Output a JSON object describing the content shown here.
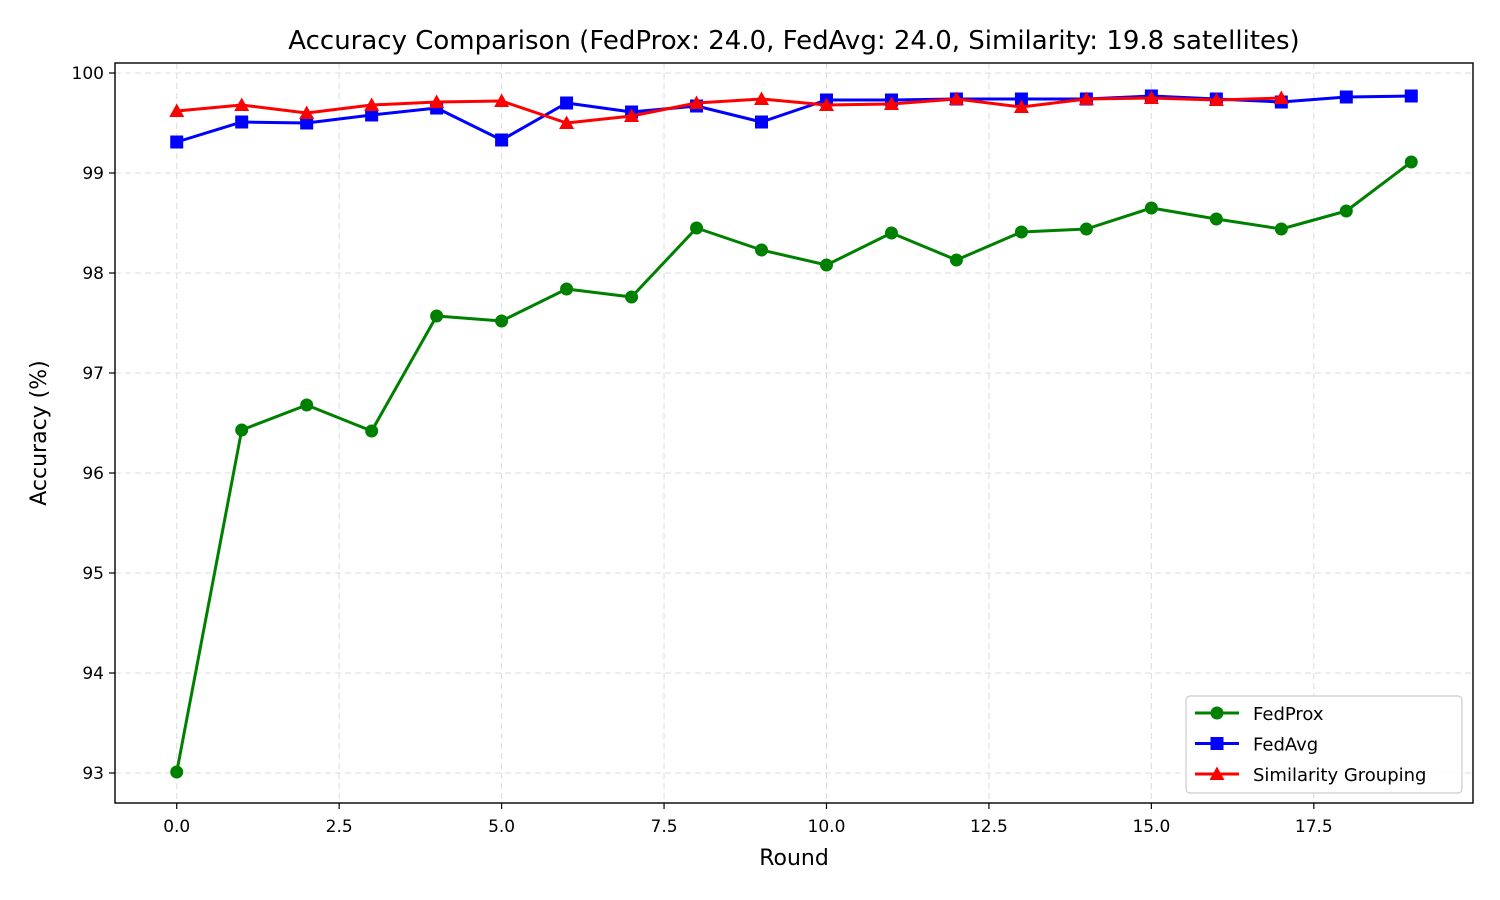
{
  "chart_data": {
    "type": "line",
    "title": "Accuracy Comparison (FedProx: 24.0, FedAvg: 24.0, Similarity: 19.8 satellites)",
    "xlabel": "Round",
    "ylabel": "Accuracy (%)",
    "xlim": [
      -0.95,
      19.95
    ],
    "ylim": [
      92.7,
      100.1
    ],
    "xticks": [
      0.0,
      2.5,
      5.0,
      7.5,
      10.0,
      12.5,
      15.0,
      17.5
    ],
    "xtick_labels": [
      "0.0",
      "2.5",
      "5.0",
      "7.5",
      "10.0",
      "12.5",
      "15.0",
      "17.5"
    ],
    "yticks": [
      93,
      94,
      95,
      96,
      97,
      98,
      99,
      100
    ],
    "ytick_labels": [
      "93",
      "94",
      "95",
      "96",
      "97",
      "98",
      "99",
      "100"
    ],
    "grid": true,
    "legend_position": "bottom-right",
    "series": [
      {
        "name": "FedProx",
        "color": "#008000",
        "marker": "circle",
        "x": [
          0,
          1,
          2,
          3,
          4,
          5,
          6,
          7,
          8,
          9,
          10,
          11,
          12,
          13,
          14,
          15,
          16,
          17,
          18,
          19
        ],
        "y": [
          93.01,
          96.43,
          96.68,
          96.42,
          97.57,
          97.52,
          97.84,
          97.76,
          98.45,
          98.23,
          98.08,
          98.4,
          98.13,
          98.41,
          98.44,
          98.65,
          98.54,
          98.44,
          98.62,
          99.11
        ]
      },
      {
        "name": "FedAvg",
        "color": "#0000ff",
        "marker": "square",
        "x": [
          0,
          1,
          2,
          3,
          4,
          5,
          6,
          7,
          8,
          9,
          10,
          11,
          12,
          13,
          14,
          15,
          16,
          17,
          18,
          19
        ],
        "y": [
          99.31,
          99.51,
          99.5,
          99.58,
          99.65,
          99.33,
          99.7,
          99.61,
          99.67,
          99.51,
          99.73,
          99.73,
          99.74,
          99.74,
          99.74,
          99.77,
          99.74,
          99.71,
          99.76,
          99.77
        ]
      },
      {
        "name": "Similarity Grouping",
        "color": "#ff0000",
        "marker": "triangle",
        "x": [
          0,
          1,
          2,
          3,
          4,
          5,
          6,
          7,
          8,
          9,
          10,
          11,
          12,
          13,
          14,
          15,
          16,
          17
        ],
        "y": [
          99.62,
          99.68,
          99.6,
          99.68,
          99.71,
          99.72,
          99.5,
          99.57,
          99.7,
          99.74,
          99.68,
          99.69,
          99.74,
          99.66,
          99.74,
          99.75,
          99.73,
          99.75
        ]
      }
    ]
  }
}
